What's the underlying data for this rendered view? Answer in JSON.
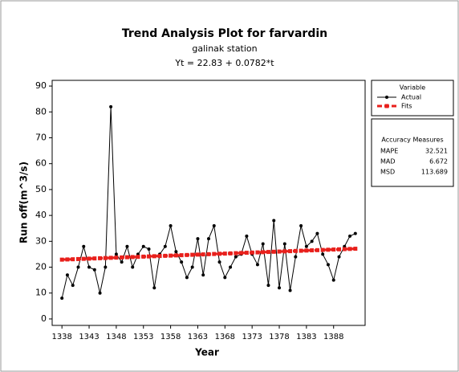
{
  "chart_data": {
    "type": "line",
    "title": "Trend Analysis Plot for farvardin",
    "subtitle": "galinak station",
    "equation": "Yt = 22.83 + 0.0782*t",
    "x_label": "Year",
    "y_label": "Run off(m^3/s)",
    "x": [
      1338,
      1339,
      1340,
      1341,
      1342,
      1343,
      1344,
      1345,
      1346,
      1347,
      1348,
      1349,
      1350,
      1351,
      1352,
      1353,
      1354,
      1355,
      1356,
      1357,
      1358,
      1359,
      1360,
      1361,
      1362,
      1363,
      1364,
      1365,
      1366,
      1367,
      1368,
      1369,
      1370,
      1371,
      1372,
      1373,
      1374,
      1375,
      1376,
      1377,
      1378,
      1379,
      1380,
      1381,
      1382,
      1383,
      1384,
      1385,
      1386,
      1387,
      1388,
      1389,
      1390,
      1391,
      1392
    ],
    "series": [
      {
        "name": "Actual",
        "color": "#000000",
        "marker": "circle",
        "values": [
          8,
          17,
          13,
          20,
          28,
          20,
          19,
          10,
          20,
          82,
          25,
          22,
          28,
          20,
          25,
          28,
          27,
          12,
          25,
          28,
          36,
          26,
          22,
          16,
          20,
          31,
          17,
          31,
          36,
          22,
          16,
          20,
          24,
          25,
          32,
          25,
          21,
          29,
          13,
          38,
          12,
          29,
          11,
          24,
          36,
          28,
          30,
          33,
          25,
          21,
          15,
          24,
          28,
          32,
          33
        ]
      },
      {
        "name": "Fits",
        "color": "#e8201c",
        "marker": "square",
        "dashed": true,
        "values": [
          22.91,
          22.99,
          23.06,
          23.14,
          23.22,
          23.3,
          23.38,
          23.46,
          23.53,
          23.61,
          23.69,
          23.77,
          23.85,
          23.92,
          24.0,
          24.08,
          24.16,
          24.24,
          24.32,
          24.39,
          24.47,
          24.55,
          24.63,
          24.71,
          24.79,
          24.86,
          24.94,
          25.02,
          25.1,
          25.18,
          25.25,
          25.33,
          25.41,
          25.49,
          25.57,
          25.65,
          25.72,
          25.8,
          25.88,
          25.96,
          26.04,
          26.11,
          26.19,
          26.27,
          26.35,
          26.43,
          26.51,
          26.58,
          26.66,
          26.74,
          26.82,
          26.9,
          26.98,
          27.05,
          27.13
        ]
      }
    ],
    "xlim": [
      1336.2,
      1393.8
    ],
    "xticks": [
      1338,
      1343,
      1348,
      1353,
      1358,
      1363,
      1368,
      1373,
      1378,
      1383,
      1388
    ],
    "ylim": [
      -2.5,
      92.2
    ],
    "yticks": [
      0,
      10,
      20,
      30,
      40,
      50,
      60,
      70,
      80,
      90
    ],
    "legend_title": "Variable",
    "accuracy_measures": {
      "title": "Accuracy Measures",
      "rows": [
        {
          "label": "MAPE",
          "value": 32.521
        },
        {
          "label": "MAD",
          "value": 6.672
        },
        {
          "label": "MSD",
          "value": 113.689
        }
      ]
    }
  }
}
